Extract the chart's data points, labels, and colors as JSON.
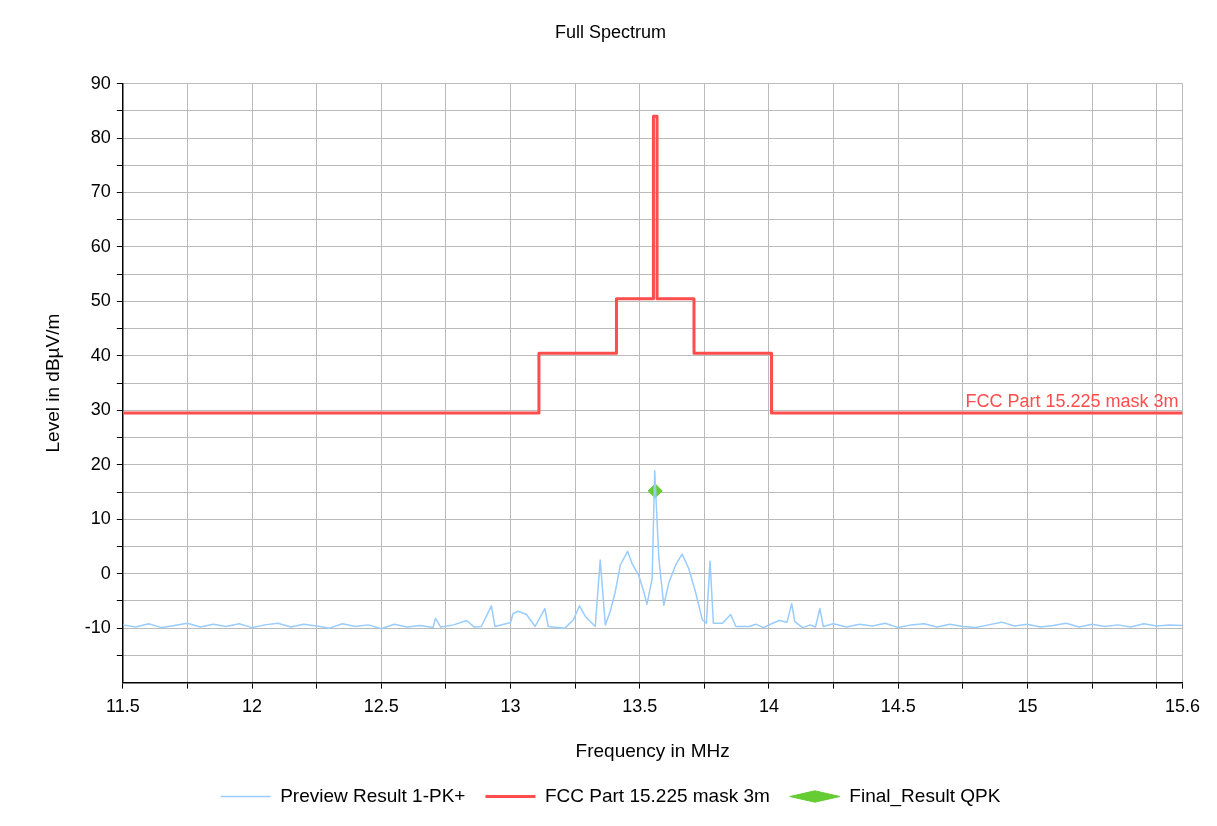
{
  "chart_data": {
    "type": "line",
    "title": "Full Spectrum",
    "xlabel": "Frequency in MHz",
    "ylabel": "Level in dBµV/m",
    "xlim": [
      11.5,
      15.6
    ],
    "xticks": [
      11.5,
      {
        "value": 11.75,
        "label": null
      },
      12,
      {
        "value": 12.25,
        "label": null
      },
      12.5,
      {
        "value": 12.75,
        "label": null
      },
      13,
      {
        "value": 13.25,
        "label": null
      },
      13.5,
      {
        "value": 13.75,
        "label": null
      },
      14,
      {
        "value": 14.25,
        "label": null
      },
      14.5,
      {
        "value": 14.75,
        "label": null
      },
      15,
      {
        "value": 15.25,
        "label": null
      },
      {
        "value": 15.5,
        "label": null
      },
      15.6
    ],
    "ylim": [
      -20,
      90
    ],
    "yticks": [
      {
        "value": -15,
        "label": null
      },
      -10,
      {
        "value": -5,
        "label": null
      },
      0,
      {
        "value": 5,
        "label": null
      },
      10,
      {
        "value": 15,
        "label": null
      },
      20,
      {
        "value": 25,
        "label": null
      },
      30,
      {
        "value": 35,
        "label": null
      },
      40,
      {
        "value": 45,
        "label": null
      },
      50,
      {
        "value": 55,
        "label": null
      },
      60,
      {
        "value": 65,
        "label": null
      },
      70,
      {
        "value": 75,
        "label": null
      },
      80,
      {
        "value": 85,
        "label": null
      },
      90
    ],
    "grid": true,
    "legend": "bottom",
    "annotations": [
      {
        "text": "FCC Part 15.225 mask 3m",
        "x": 15.6,
        "y": 29.5
      }
    ],
    "series": [
      {
        "name": "Preview Result 1-PK+",
        "type": "line",
        "color": "#99ccff",
        "marker": "none",
        "x": [
          11.5,
          11.55,
          11.6,
          11.65,
          11.7,
          11.75,
          11.8,
          11.85,
          11.9,
          11.95,
          12.0,
          12.05,
          12.1,
          12.15,
          12.2,
          12.25,
          12.3,
          12.35,
          12.4,
          12.45,
          12.5,
          12.55,
          12.6,
          12.65,
          12.7,
          12.71,
          12.73,
          12.78,
          12.83,
          12.86,
          12.887,
          12.926,
          12.94,
          13.0,
          13.01,
          13.03,
          13.062,
          13.095,
          13.133,
          13.146,
          13.211,
          13.244,
          13.267,
          13.289,
          13.328,
          13.347,
          13.367,
          13.386,
          13.405,
          13.425,
          13.453,
          13.47,
          13.496,
          13.516,
          13.528,
          13.548,
          13.558,
          13.574,
          13.593,
          13.613,
          13.639,
          13.664,
          13.69,
          13.716,
          13.742,
          13.758,
          13.772,
          13.785,
          13.82,
          13.852,
          13.872,
          13.923,
          13.95,
          13.98,
          14.01,
          14.04,
          14.07,
          14.088,
          14.1,
          14.13,
          14.16,
          14.18,
          14.197,
          14.21,
          14.25,
          14.3,
          14.35,
          14.4,
          14.45,
          14.5,
          14.55,
          14.6,
          14.65,
          14.7,
          14.75,
          14.8,
          14.85,
          14.9,
          14.95,
          15.0,
          15.05,
          15.1,
          15.15,
          15.2,
          15.25,
          15.3,
          15.35,
          15.4,
          15.45,
          15.5,
          15.55,
          15.6
        ],
        "values": [
          -9.4,
          -9.8,
          -9.2,
          -9.9,
          -9.5,
          -9.1,
          -9.8,
          -9.3,
          -9.7,
          -9.2,
          -9.9,
          -9.4,
          -9.1,
          -9.8,
          -9.3,
          -9.6,
          -10.0,
          -9.2,
          -9.7,
          -9.4,
          -10.1,
          -9.3,
          -9.8,
          -9.5,
          -9.9,
          -8.2,
          -9.8,
          -9.4,
          -8.6,
          -9.8,
          -9.7,
          -5.9,
          -9.7,
          -9.0,
          -7.3,
          -6.9,
          -7.5,
          -9.7,
          -6.4,
          -9.7,
          -10.0,
          -8.4,
          -5.9,
          -7.8,
          -9.7,
          2.5,
          -9.4,
          -6.9,
          -3.4,
          1.6,
          4.1,
          1.9,
          -0.3,
          -3.4,
          -5.6,
          -0.9,
          18.9,
          2.8,
          -5.8,
          -1.6,
          1.6,
          3.6,
          0.9,
          -3.4,
          -8.4,
          -9.1,
          2.3,
          -9.1,
          -9.1,
          -7.5,
          -9.7,
          -9.7,
          -9.3,
          -9.9,
          -9.2,
          -8.6,
          -8.9,
          -5.5,
          -8.8,
          -9.9,
          -9.4,
          -9.8,
          -6.4,
          -9.7,
          -9.2,
          -9.8,
          -9.3,
          -9.6,
          -9.1,
          -9.9,
          -9.4,
          -9.2,
          -9.8,
          -9.3,
          -9.7,
          -9.9,
          -9.4,
          -8.9,
          -9.6,
          -9.3,
          -9.8,
          -9.5,
          -9.1,
          -9.8,
          -9.3,
          -9.7,
          -9.4,
          -9.8,
          -9.2,
          -9.6,
          -9.4,
          -9.5
        ]
      },
      {
        "name": "FCC Part 15.225 mask 3m",
        "type": "line",
        "color": "#ff4c4c",
        "marker": "none",
        "x": [
          11.5,
          13.11,
          13.11,
          13.41,
          13.41,
          13.553,
          13.553,
          13.567,
          13.567,
          13.71,
          13.71,
          14.01,
          14.01,
          15.6
        ],
        "values": [
          29.5,
          29.5,
          40.5,
          40.5,
          50.5,
          50.5,
          84.0,
          84.0,
          50.5,
          50.5,
          40.5,
          40.5,
          29.5,
          29.5
        ]
      },
      {
        "name": "Final_Result QPK",
        "type": "scatter",
        "color": "#66cc33",
        "marker": "diamond",
        "x": [
          13.56
        ],
        "values": [
          15.2
        ]
      }
    ]
  }
}
